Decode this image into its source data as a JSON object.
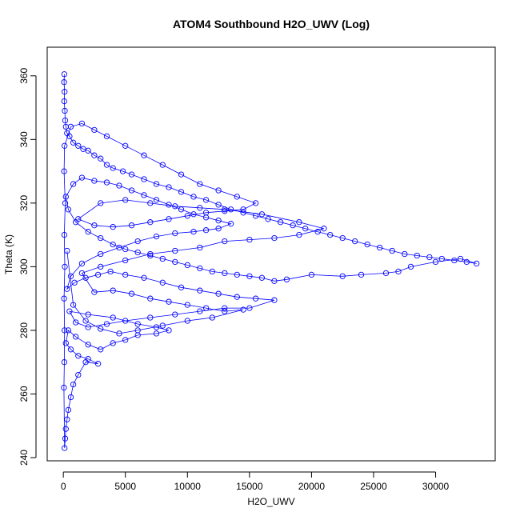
{
  "chart_data": {
    "type": "scatter",
    "title": "ATOM4 Southbound H2O_UWV (Log)",
    "xlabel": "H2O_UWV",
    "ylabel": "Theta (K)",
    "xlim": [
      -1300,
      34800
    ],
    "ylim": [
      239,
      369
    ],
    "x_ticks": [
      0,
      5000,
      10000,
      15000,
      20000,
      25000,
      30000
    ],
    "y_ticks": [
      240,
      260,
      280,
      300,
      320,
      340,
      360
    ],
    "grid": false,
    "legend": "none",
    "series_color": "#0000ff",
    "marker": "open-circle",
    "connected_by_lines": true,
    "series": [
      {
        "points": [
          [
            80,
            360.5
          ],
          [
            60,
            358
          ],
          [
            100,
            355
          ],
          [
            70,
            352
          ],
          [
            120,
            349
          ],
          [
            150,
            346
          ],
          [
            200,
            344
          ],
          [
            300,
            342
          ],
          [
            500,
            341
          ],
          [
            800,
            339
          ],
          [
            1200,
            338
          ],
          [
            1600,
            337
          ],
          [
            2000,
            336.5
          ],
          [
            2500,
            335
          ],
          [
            3000,
            334
          ],
          [
            3500,
            332
          ],
          [
            4000,
            331
          ],
          [
            4800,
            330
          ],
          [
            5500,
            329
          ],
          [
            6500,
            327.5
          ],
          [
            7500,
            326
          ],
          [
            8500,
            325
          ],
          [
            9500,
            323.5
          ],
          [
            10500,
            322
          ],
          [
            11500,
            321
          ],
          [
            12500,
            319.5
          ],
          [
            13500,
            318
          ],
          [
            14500,
            317
          ],
          [
            15500,
            316
          ],
          [
            16500,
            315
          ],
          [
            17500,
            314
          ],
          [
            18500,
            313
          ],
          [
            19500,
            312
          ],
          [
            20500,
            311
          ],
          [
            21500,
            310
          ],
          [
            22500,
            309
          ],
          [
            23500,
            308
          ],
          [
            24500,
            307
          ],
          [
            25500,
            306
          ],
          [
            26500,
            305
          ],
          [
            27500,
            304
          ],
          [
            28500,
            303.5
          ],
          [
            29500,
            303
          ],
          [
            30500,
            302.5
          ],
          [
            31500,
            302
          ],
          [
            32500,
            301.5
          ],
          [
            33300,
            301
          ],
          [
            32000,
            302.5
          ],
          [
            30000,
            301.5
          ],
          [
            28000,
            300
          ],
          [
            27000,
            298.5
          ],
          [
            26000,
            298
          ],
          [
            24000,
            297.5
          ],
          [
            22500,
            297
          ],
          [
            20000,
            297.5
          ],
          [
            18000,
            296
          ],
          [
            17000,
            295.5
          ],
          [
            16000,
            296.5
          ],
          [
            15000,
            297
          ],
          [
            14000,
            297.5
          ],
          [
            13000,
            298
          ],
          [
            12000,
            298.5
          ],
          [
            11000,
            299.5
          ],
          [
            10000,
            300.5
          ],
          [
            9000,
            301.5
          ],
          [
            8000,
            302.5
          ],
          [
            7000,
            303.5
          ],
          [
            6000,
            304.5
          ],
          [
            5000,
            305.5
          ],
          [
            4000,
            307
          ],
          [
            3000,
            309
          ],
          [
            2000,
            311
          ],
          [
            1000,
            314
          ],
          [
            400,
            318
          ],
          [
            200,
            322
          ],
          [
            800,
            326
          ],
          [
            1500,
            328
          ],
          [
            2500,
            327
          ],
          [
            3500,
            326.5
          ],
          [
            4500,
            325.5
          ],
          [
            5500,
            324
          ],
          [
            6500,
            322.5
          ],
          [
            7500,
            321
          ],
          [
            8500,
            319.5
          ],
          [
            9500,
            318
          ],
          [
            10500,
            316.5
          ],
          [
            11500,
            315.5
          ],
          [
            12500,
            314.5
          ],
          [
            13500,
            313.5
          ],
          [
            12500,
            312
          ],
          [
            11500,
            311.5
          ],
          [
            10500,
            311
          ],
          [
            9000,
            310.5
          ],
          [
            7500,
            309.5
          ],
          [
            6000,
            308
          ],
          [
            4500,
            306
          ],
          [
            3000,
            304
          ],
          [
            1500,
            301
          ],
          [
            600,
            297
          ],
          [
            300,
            293
          ],
          [
            900,
            295
          ],
          [
            1800,
            296.5
          ],
          [
            2800,
            297.5
          ],
          [
            3800,
            298.5
          ],
          [
            5000,
            297.5
          ],
          [
            6500,
            296.5
          ],
          [
            8000,
            295
          ],
          [
            9500,
            293.5
          ],
          [
            11000,
            292.5
          ],
          [
            12500,
            291.5
          ],
          [
            14000,
            290.5
          ],
          [
            15500,
            290
          ],
          [
            17000,
            289.5
          ],
          [
            15000,
            287
          ],
          [
            13000,
            287
          ],
          [
            11000,
            286
          ],
          [
            9000,
            285
          ],
          [
            7000,
            284
          ],
          [
            5000,
            283
          ],
          [
            3500,
            282
          ],
          [
            2000,
            281
          ],
          [
            1000,
            282.5
          ],
          [
            500,
            286
          ],
          [
            2000,
            285
          ],
          [
            4000,
            284
          ],
          [
            6000,
            282
          ],
          [
            7500,
            281
          ],
          [
            8500,
            280
          ],
          [
            7500,
            279
          ],
          [
            6000,
            278.5
          ],
          [
            5000,
            277
          ],
          [
            4000,
            276
          ],
          [
            3000,
            274
          ],
          [
            2000,
            275.5
          ],
          [
            1000,
            278
          ],
          [
            400,
            280
          ],
          [
            200,
            276
          ],
          [
            600,
            274
          ],
          [
            1200,
            272
          ],
          [
            2000,
            271
          ],
          [
            2800,
            269.5
          ],
          [
            1800,
            270
          ],
          [
            1200,
            266
          ],
          [
            800,
            263
          ],
          [
            600,
            259
          ],
          [
            400,
            255
          ],
          [
            300,
            252
          ],
          [
            200,
            249
          ],
          [
            150,
            246
          ],
          [
            100,
            243
          ],
          [
            50,
            262
          ],
          [
            80,
            270
          ],
          [
            100,
            280
          ],
          [
            60,
            290
          ],
          [
            120,
            300
          ],
          [
            80,
            310
          ],
          [
            150,
            320
          ],
          [
            60,
            330
          ],
          [
            100,
            338
          ],
          [
            600,
            344
          ],
          [
            1500,
            345
          ],
          [
            2500,
            343
          ],
          [
            3500,
            341
          ],
          [
            5000,
            338
          ],
          [
            6500,
            335
          ],
          [
            8000,
            332
          ],
          [
            9500,
            329
          ],
          [
            11000,
            326
          ],
          [
            12500,
            324
          ],
          [
            14000,
            322
          ],
          [
            15500,
            320
          ],
          [
            14500,
            318
          ],
          [
            13000,
            317.5
          ],
          [
            11500,
            317
          ],
          [
            10000,
            316
          ],
          [
            8500,
            315
          ],
          [
            7000,
            314
          ],
          [
            5500,
            313
          ],
          [
            4000,
            312.5
          ],
          [
            2500,
            313
          ],
          [
            1200,
            315
          ],
          [
            3000,
            320
          ],
          [
            5000,
            321
          ],
          [
            7000,
            320
          ],
          [
            9000,
            319
          ],
          [
            11000,
            318.5
          ],
          [
            13000,
            318
          ],
          [
            16000,
            316.5
          ],
          [
            19000,
            314
          ],
          [
            21000,
            312
          ],
          [
            19000,
            310
          ],
          [
            17000,
            309
          ],
          [
            15000,
            308.5
          ],
          [
            13000,
            308
          ],
          [
            11000,
            306
          ],
          [
            9000,
            305
          ],
          [
            7000,
            304
          ],
          [
            5000,
            302
          ],
          [
            3000,
            300
          ],
          [
            1500,
            298
          ],
          [
            2500,
            292
          ],
          [
            4000,
            292.5
          ],
          [
            5500,
            291.5
          ],
          [
            7000,
            290
          ],
          [
            8500,
            289
          ],
          [
            10000,
            288
          ],
          [
            11500,
            287
          ],
          [
            13000,
            286
          ],
          [
            14500,
            286.5
          ],
          [
            12000,
            284
          ],
          [
            10000,
            283
          ],
          [
            8000,
            281.5
          ],
          [
            6000,
            280
          ],
          [
            4500,
            279
          ],
          [
            3000,
            280.5
          ],
          [
            1800,
            283
          ],
          [
            800,
            288
          ],
          [
            300,
            305
          ]
        ]
      }
    ]
  }
}
